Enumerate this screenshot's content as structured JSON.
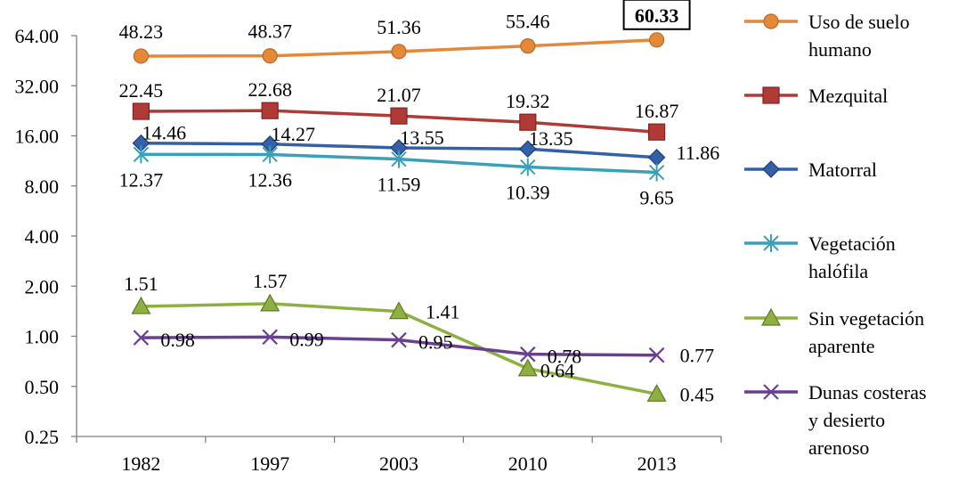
{
  "chart_data": {
    "type": "line",
    "y_scale": "log2",
    "categories": [
      "1982",
      "1997",
      "2003",
      "2010",
      "2013"
    ],
    "y_ticks": [
      "0.25",
      "0.50",
      "1.00",
      "2.00",
      "4.00",
      "8.00",
      "16.00",
      "32.00",
      "64.00"
    ],
    "ylim": [
      0.25,
      64
    ],
    "grid": false,
    "legend_position": "right",
    "series": [
      {
        "name": "Uso de suelo humano",
        "legend_lines": [
          "Uso de suelo",
          "humano"
        ],
        "marker": "circle",
        "color": "#E4893A",
        "values": [
          48.23,
          48.37,
          51.36,
          55.46,
          60.33
        ],
        "labels": [
          "48.23",
          "48.37",
          "51.36",
          "55.46",
          "60.33"
        ],
        "highlight_index": 4
      },
      {
        "name": "Mezquital",
        "legend_lines": [
          "Mezquital"
        ],
        "marker": "square",
        "color": "#B03A35",
        "values": [
          22.45,
          22.68,
          21.07,
          19.32,
          16.87
        ],
        "labels": [
          "22.45",
          "22.68",
          "21.07",
          "19.32",
          "16.87"
        ]
      },
      {
        "name": "Matorral",
        "legend_lines": [
          "Matorral"
        ],
        "marker": "diamond",
        "color": "#3360A8",
        "values": [
          14.46,
          14.27,
          13.55,
          13.35,
          11.86
        ],
        "labels": [
          "14.46",
          "14.27",
          "13.55",
          "13.35",
          "11.86"
        ]
      },
      {
        "name": "Vegetación halófila",
        "legend_lines": [
          "Vegetación",
          "halófila"
        ],
        "marker": "asterisk",
        "color": "#3AA0B8",
        "values": [
          12.37,
          12.36,
          11.59,
          10.39,
          9.65
        ],
        "labels": [
          "12.37",
          "12.36",
          "11.59",
          "10.39",
          "9.65"
        ]
      },
      {
        "name": "Sin vegetación aparente",
        "legend_lines": [
          "Sin vegetación",
          "aparente"
        ],
        "marker": "triangle",
        "color": "#8DB040",
        "values": [
          1.51,
          1.57,
          1.41,
          0.64,
          0.45
        ],
        "labels": [
          "1.51",
          "1.57",
          "1.41",
          "0.64",
          "0.45"
        ]
      },
      {
        "name": "Dunas costeras y desierto arenoso",
        "legend_lines": [
          "Dunas costeras",
          "y desierto",
          "arenoso"
        ],
        "marker": "x",
        "color": "#6A3F92",
        "values": [
          0.98,
          0.99,
          0.95,
          0.78,
          0.77
        ],
        "labels": [
          "0.98",
          "0.99",
          "0.95",
          "0.78",
          "0.77"
        ]
      }
    ]
  }
}
